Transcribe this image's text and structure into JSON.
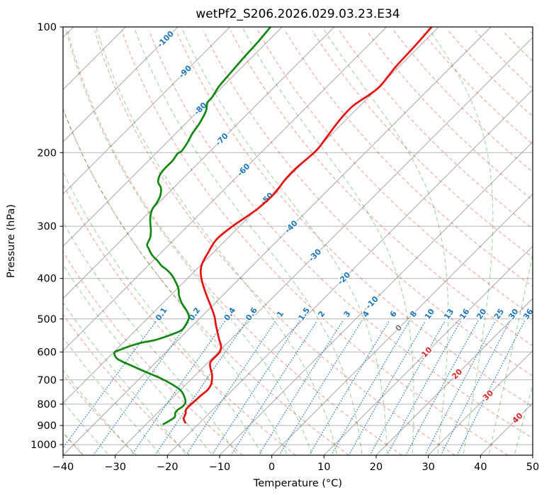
{
  "title": "wetPf2_S206.2026.029.03.23.E34",
  "axes": {
    "x_label": "Temperature (°C)",
    "y_label": "Pressure (hPa)",
    "x_tick_labels": [
      "−40",
      "−30",
      "−20",
      "−10",
      "0",
      "10",
      "20",
      "30",
      "40",
      "50"
    ],
    "y_tick_labels": [
      "100",
      "200",
      "300",
      "400",
      "500",
      "600",
      "700",
      "800",
      "900",
      "1000"
    ]
  },
  "chart_data": {
    "type": "line",
    "subtype": "skewt_logp",
    "title": "wetPf2_S206.2026.029.03.23.E34",
    "xlabel": "Temperature (°C)",
    "ylabel": "Pressure (hPa)",
    "x_ticks_c": [
      -40,
      -30,
      -20,
      -10,
      0,
      10,
      20,
      30,
      40,
      50
    ],
    "x_range_bottom_c": [
      -40,
      50
    ],
    "pressure_ticks_hpa": [
      100,
      200,
      300,
      400,
      500,
      600,
      700,
      800,
      900,
      1000
    ],
    "pressure_range_hpa": [
      100,
      1060
    ],
    "skew_deg": 45,
    "grid": true,
    "isotherms_c": {
      "min": -120,
      "max": 50,
      "step": 10
    },
    "isotherm_labels": [
      {
        "t": -100,
        "p": 107,
        "label": "-100"
      },
      {
        "t": -90,
        "p": 128,
        "label": "-90"
      },
      {
        "t": -80,
        "p": 157,
        "label": "-80"
      },
      {
        "t": -70,
        "p": 186,
        "label": "-70"
      },
      {
        "t": -60,
        "p": 220,
        "label": "-60"
      },
      {
        "t": -50,
        "p": 258,
        "label": "-50"
      },
      {
        "t": -40,
        "p": 301,
        "label": "-40"
      },
      {
        "t": -30,
        "p": 352,
        "label": "-30"
      },
      {
        "t": -20,
        "p": 400,
        "label": "-20"
      },
      {
        "t": -10,
        "p": 457,
        "label": "-10"
      },
      {
        "t": 0,
        "p": 526,
        "label": "0"
      },
      {
        "t": 10,
        "p": 601,
        "label": "10"
      },
      {
        "t": 20,
        "p": 678,
        "label": "20"
      },
      {
        "t": 30,
        "p": 762,
        "label": "30"
      },
      {
        "t": 40,
        "p": 864,
        "label": "40"
      }
    ],
    "dry_adiabats_theta_c": [
      -40,
      -30,
      -20,
      -10,
      0,
      10,
      20,
      30,
      40,
      50,
      60,
      70,
      80,
      90,
      100,
      110,
      120,
      130,
      140,
      150,
      160,
      170,
      180,
      190
    ],
    "moist_adiabats_t1000_c": [
      -40,
      -35,
      -30,
      -25,
      -20,
      -15,
      -10,
      -5,
      0,
      5,
      10,
      15,
      20,
      25,
      30,
      35,
      40,
      45
    ],
    "mixing_ratio_g_kg": [
      0.1,
      0.2,
      0.4,
      0.6,
      1,
      1.5,
      2,
      3,
      4,
      6,
      8,
      10,
      13,
      16,
      20,
      25,
      30,
      36
    ],
    "mixing_ratio_labels": [
      "0.1",
      "0.2",
      "0.4",
      "0.6",
      "1",
      "1.5",
      "2",
      "3",
      "4",
      "6",
      "8",
      "10",
      "13",
      "16",
      "20",
      "25",
      "30",
      "36"
    ],
    "mixing_line_top_hpa": 500,
    "mixing_label_pressure_hpa": 487,
    "series": [
      {
        "name": "temperature",
        "color": "#e81010",
        "points_p_t": [
          [
            99,
            -51.4
          ],
          [
            112,
            -50.9
          ],
          [
            125,
            -50.6
          ],
          [
            138,
            -49.9
          ],
          [
            145,
            -50.3
          ],
          [
            154,
            -51.3
          ],
          [
            163,
            -51.3
          ],
          [
            173,
            -50.9
          ],
          [
            185,
            -50.3
          ],
          [
            198,
            -49.8
          ],
          [
            218,
            -50.3
          ],
          [
            232,
            -50.2
          ],
          [
            250,
            -49.6
          ],
          [
            270,
            -49.8
          ],
          [
            281,
            -50.3
          ],
          [
            301,
            -51.4
          ],
          [
            323,
            -51.9
          ],
          [
            349,
            -50.9
          ],
          [
            369,
            -50.0
          ],
          [
            385,
            -48.8
          ],
          [
            407,
            -46.6
          ],
          [
            440,
            -43.0
          ],
          [
            476,
            -39.2
          ],
          [
            495,
            -37.4
          ],
          [
            515,
            -35.8
          ],
          [
            535,
            -34.2
          ],
          [
            563,
            -32.0
          ],
          [
            581,
            -30.6
          ],
          [
            602,
            -29.7
          ],
          [
            633,
            -29.6
          ],
          [
            653,
            -28.6
          ],
          [
            676,
            -27.1
          ],
          [
            693,
            -26.2
          ],
          [
            717,
            -25.2
          ],
          [
            740,
            -24.8
          ],
          [
            761,
            -25.0
          ],
          [
            779,
            -25.1
          ],
          [
            800,
            -25.2
          ],
          [
            823,
            -25.2
          ],
          [
            842,
            -24.5
          ],
          [
            866,
            -23.9
          ],
          [
            886,
            -22.8
          ]
        ]
      },
      {
        "name": "dewpoint",
        "color": "#128712",
        "points_p_t": [
          [
            99,
            -82.3
          ],
          [
            108,
            -81.8
          ],
          [
            118,
            -81.5
          ],
          [
            129,
            -81.1
          ],
          [
            139,
            -80.7
          ],
          [
            147,
            -80.0
          ],
          [
            152,
            -79.8
          ],
          [
            159,
            -78.5
          ],
          [
            170,
            -77.4
          ],
          [
            180,
            -76.8
          ],
          [
            188,
            -76.1
          ],
          [
            198,
            -75.5
          ],
          [
            201,
            -75.8
          ],
          [
            209,
            -75.4
          ],
          [
            218,
            -75.4
          ],
          [
            226,
            -75.1
          ],
          [
            235,
            -74.1
          ],
          [
            243,
            -72.4
          ],
          [
            253,
            -71.1
          ],
          [
            263,
            -70.4
          ],
          [
            273,
            -70.0
          ],
          [
            284,
            -69.0
          ],
          [
            295,
            -67.7
          ],
          [
            307,
            -66.2
          ],
          [
            319,
            -65.0
          ],
          [
            332,
            -64.2
          ],
          [
            339,
            -63.2
          ],
          [
            352,
            -61.2
          ],
          [
            363,
            -59.1
          ],
          [
            373,
            -57.4
          ],
          [
            381,
            -55.7
          ],
          [
            393,
            -53.6
          ],
          [
            407,
            -51.7
          ],
          [
            423,
            -49.8
          ],
          [
            440,
            -48.3
          ],
          [
            458,
            -46.4
          ],
          [
            476,
            -44.2
          ],
          [
            495,
            -42.3
          ],
          [
            515,
            -41.5
          ],
          [
            531,
            -41.2
          ],
          [
            541,
            -41.9
          ],
          [
            552,
            -43.1
          ],
          [
            563,
            -44.6
          ],
          [
            570,
            -46.5
          ],
          [
            581,
            -48.1
          ],
          [
            592,
            -49.2
          ],
          [
            602,
            -49.8
          ],
          [
            621,
            -48.3
          ],
          [
            633,
            -46.5
          ],
          [
            650,
            -43.5
          ],
          [
            671,
            -39.9
          ],
          [
            693,
            -36.1
          ],
          [
            717,
            -32.7
          ],
          [
            740,
            -30.0
          ],
          [
            764,
            -28.2
          ],
          [
            791,
            -26.7
          ],
          [
            810,
            -26.4
          ],
          [
            823,
            -26.7
          ],
          [
            839,
            -26.6
          ],
          [
            859,
            -25.9
          ],
          [
            876,
            -26.2
          ],
          [
            893,
            -26.7
          ]
        ]
      }
    ],
    "legend": null
  },
  "colors": {
    "temperature_line": "#e81010",
    "dewpoint_line": "#128712",
    "isotherm": "#a8a8a8",
    "grid": "#b4b4b4",
    "border": "#000000",
    "dry_adiabat": "#f4a59b",
    "moist_adiabat": "#a3d3a3",
    "mixing_line": "#3c87c8",
    "mixing_label": "#1f77b4",
    "isotherm_label_neg": "#1f77b4",
    "isotherm_label_zero": "#7a7a7a",
    "isotherm_label_pos": "#d62728"
  }
}
